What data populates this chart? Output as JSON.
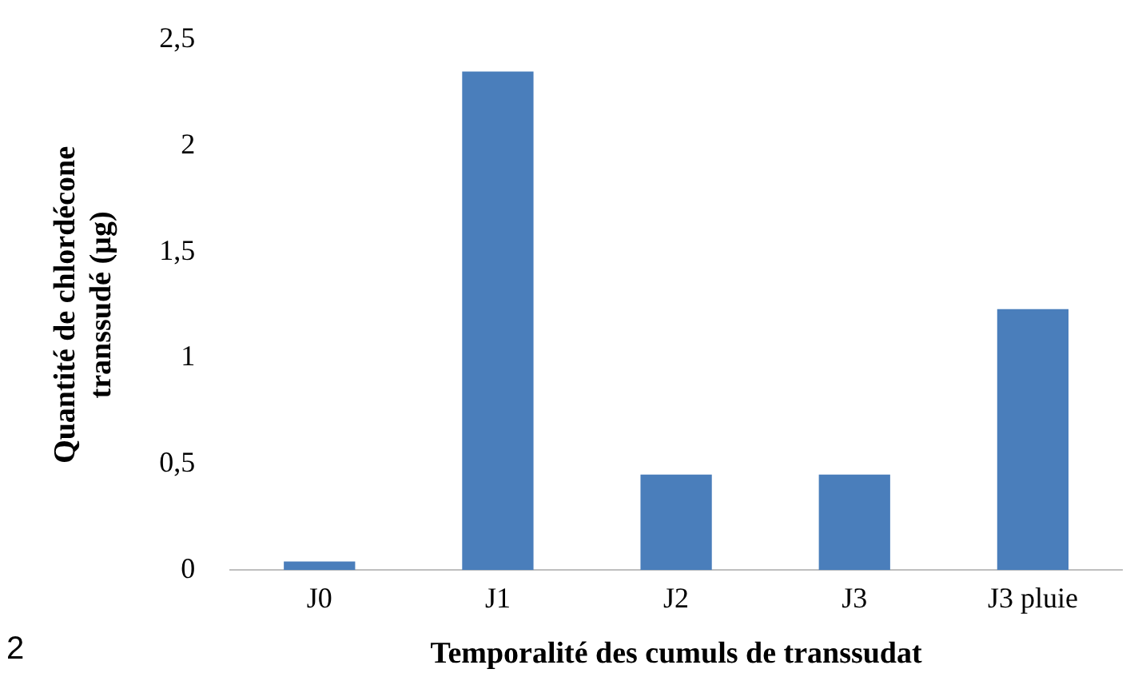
{
  "chart_data": {
    "type": "bar",
    "xlabel": "Temporalité des cumuls de transsudat",
    "ylabel": "Quantité de chlordécone\ntranssudé (µg)",
    "categories": [
      "J0",
      "J1",
      "J2",
      "J3",
      "J3 pluie"
    ],
    "values": [
      0.04,
      2.35,
      0.45,
      0.45,
      1.23
    ],
    "color": "#4a7ebb",
    "ylim": [
      0,
      2.5
    ],
    "yticks": [
      0,
      {
        "value": 0.5,
        "label": "0,5"
      },
      1,
      {
        "value": 1.5,
        "label": "1,5"
      },
      2,
      {
        "value": 2.5,
        "label": "2,5"
      }
    ],
    "grid": false,
    "legend": false,
    "annotations": [
      "2"
    ]
  }
}
